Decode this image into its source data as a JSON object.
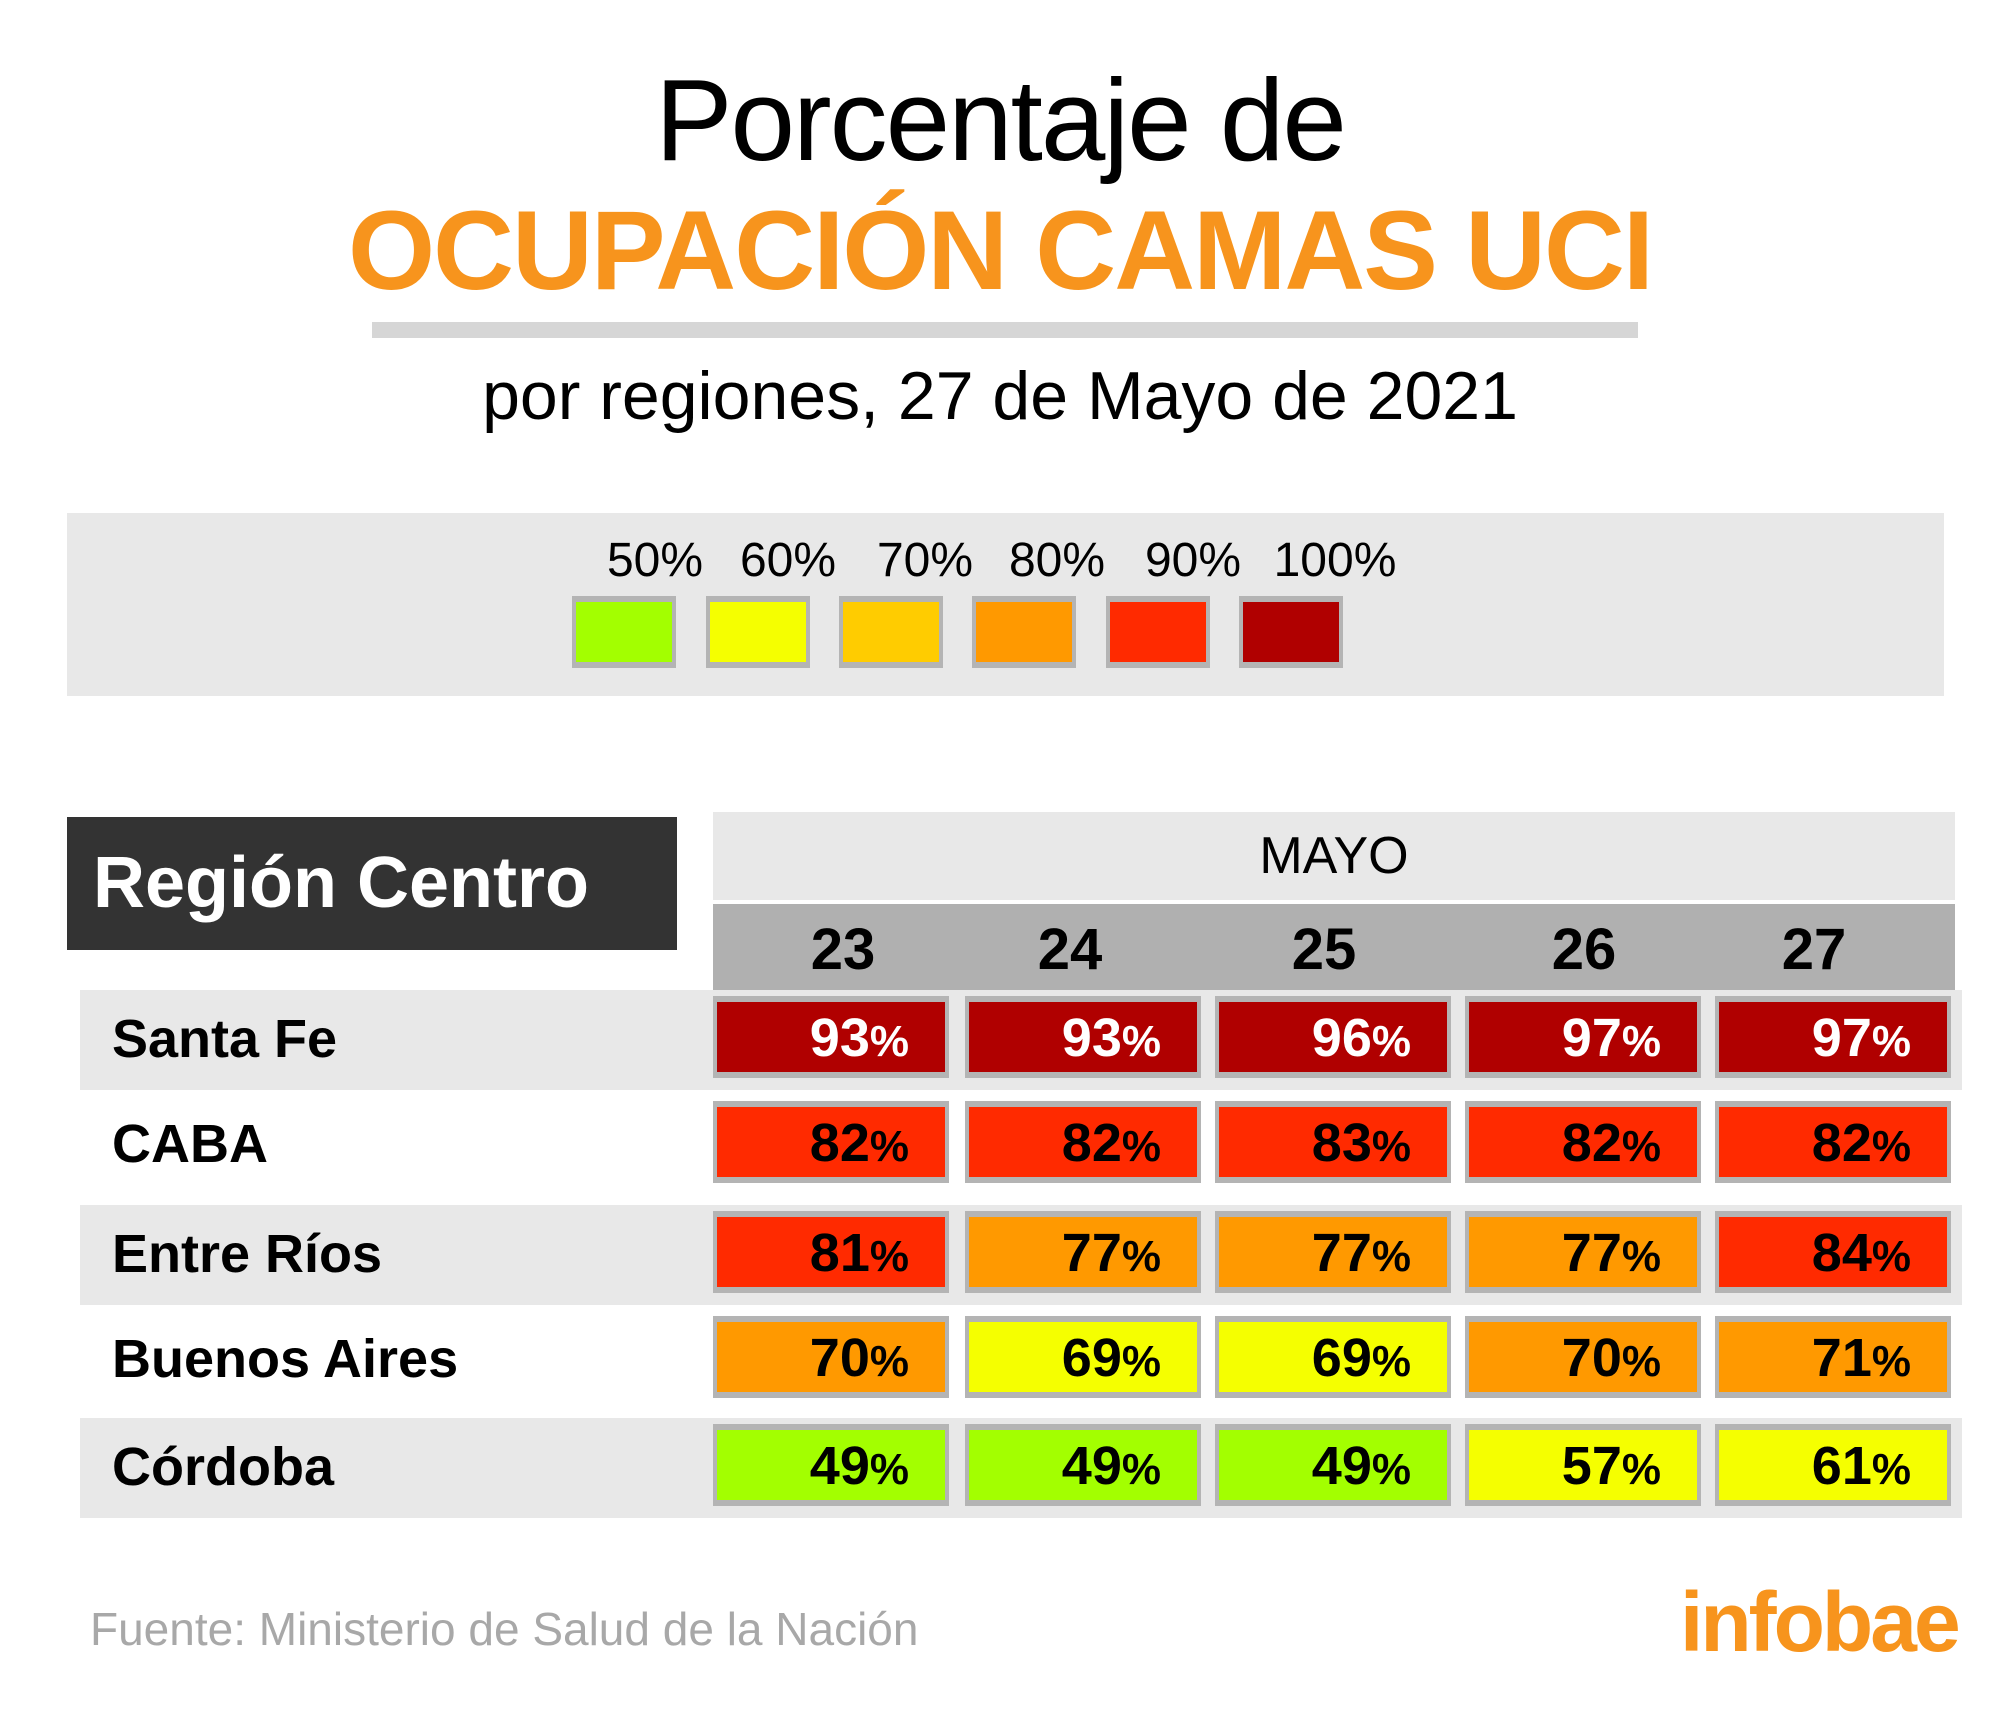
{
  "header": {
    "title_line1": "Porcentaje de",
    "title_line2": "OCUPACIÓN CAMAS UCI",
    "subtitle": "por regiones, 27 de Mayo de 2021"
  },
  "legend": {
    "items": [
      {
        "label": "50%",
        "color": "#a3ff00"
      },
      {
        "label": "60%",
        "color": "#f5ff00"
      },
      {
        "label": "70%",
        "color": "#ffcc00"
      },
      {
        "label": "80%",
        "color": "#ff9900"
      },
      {
        "label": "90%",
        "color": "#ff2a00"
      },
      {
        "label": "100%",
        "color": "#b00000"
      }
    ]
  },
  "table": {
    "region_title": "Región Centro",
    "month": "MAYO",
    "days": [
      "23",
      "24",
      "25",
      "26",
      "27"
    ]
  },
  "chart_data": {
    "type": "heatmap",
    "title": "Porcentaje de OCUPACIÓN CAMAS UCI",
    "subtitle": "por regiones, 27 de Mayo de 2021",
    "xlabel": "MAYO",
    "ylabel": "Región Centro",
    "x": [
      "23",
      "24",
      "25",
      "26",
      "27"
    ],
    "unit": "%",
    "legend": [
      "50%",
      "60%",
      "70%",
      "80%",
      "90%",
      "100%"
    ],
    "series": [
      {
        "name": "Santa Fe",
        "values": [
          93,
          93,
          96,
          97,
          97
        ],
        "text_color": "#ffffff",
        "colors": [
          "#b00000",
          "#b00000",
          "#b00000",
          "#b00000",
          "#b00000"
        ]
      },
      {
        "name": "CABA",
        "values": [
          82,
          82,
          83,
          82,
          82
        ],
        "text_color": "#000000",
        "colors": [
          "#ff2a00",
          "#ff2a00",
          "#ff2a00",
          "#ff2a00",
          "#ff2a00"
        ]
      },
      {
        "name": "Entre Ríos",
        "values": [
          81,
          77,
          77,
          77,
          84
        ],
        "text_color": "#000000",
        "colors": [
          "#ff2a00",
          "#ff9900",
          "#ff9900",
          "#ff9900",
          "#ff2a00"
        ]
      },
      {
        "name": "Buenos Aires",
        "values": [
          70,
          69,
          69,
          70,
          71
        ],
        "text_color": "#000000",
        "colors": [
          "#ff9900",
          "#f5ff00",
          "#f5ff00",
          "#ff9900",
          "#ff9900"
        ]
      },
      {
        "name": "Córdoba",
        "values": [
          49,
          49,
          49,
          57,
          61
        ],
        "text_color": "#000000",
        "colors": [
          "#a3ff00",
          "#a3ff00",
          "#a3ff00",
          "#f5ff00",
          "#f5ff00"
        ]
      }
    ]
  },
  "footer": {
    "source": "Fuente: Ministerio de Salud de la Nación",
    "logo": "infobae"
  }
}
